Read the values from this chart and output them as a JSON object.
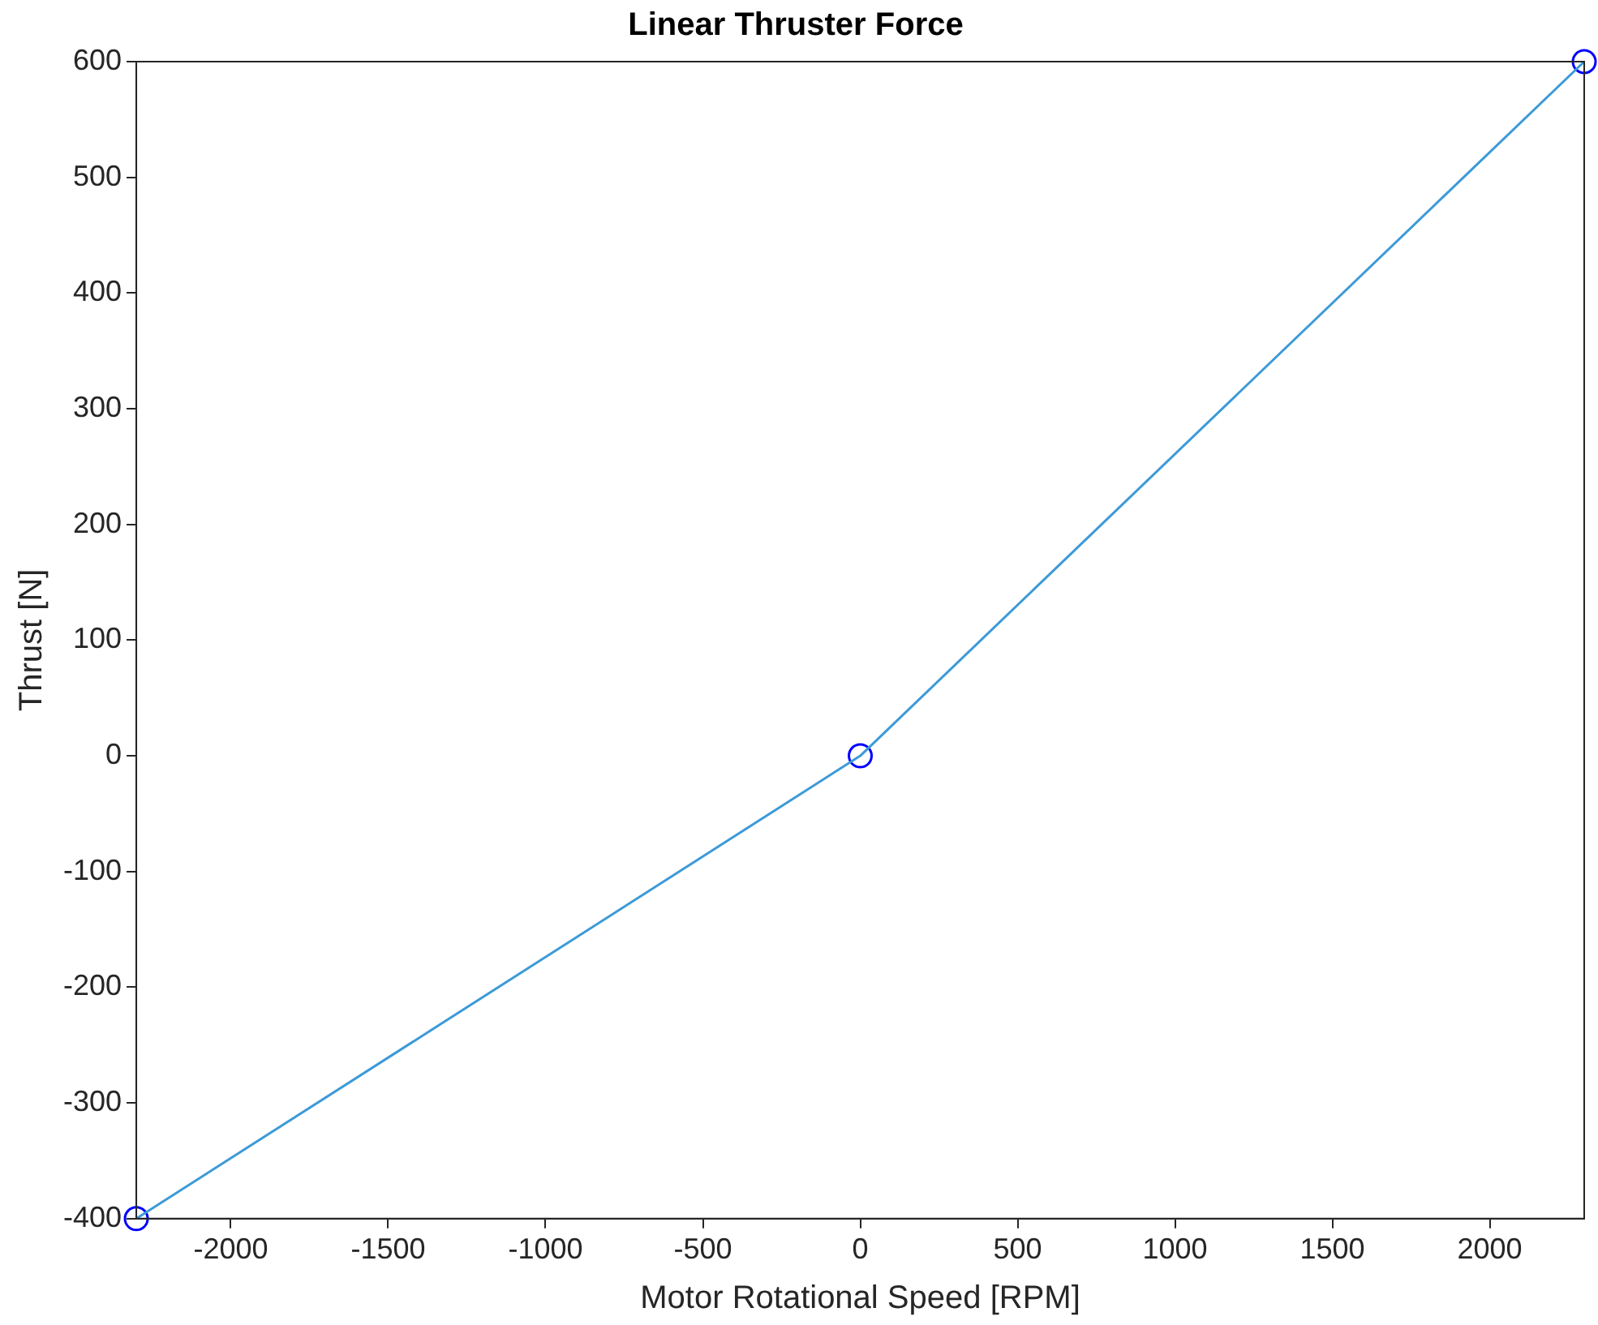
{
  "chart_data": {
    "type": "line",
    "title": "Linear Thruster Force",
    "xlabel": "Motor Rotational Speed [RPM]",
    "ylabel": "Thrust [N]",
    "x": [
      -2300,
      0,
      2300
    ],
    "series": [
      {
        "color": "#3c9ad8",
        "values": [
          -400,
          0,
          600
        ],
        "marker": "none"
      },
      {
        "type": "scatter",
        "color": "#0000ff",
        "values": [
          -400,
          0,
          600
        ],
        "marker": "circle"
      }
    ],
    "xlim": [
      -2300,
      2300
    ],
    "xticks": [
      -2000,
      -1500,
      -1000,
      -500,
      0,
      500,
      1000,
      1500,
      2000
    ],
    "ylim": [
      -400,
      600
    ],
    "yticks": [
      -400,
      -300,
      -200,
      -100,
      0,
      100,
      200,
      300,
      400,
      500,
      600
    ],
    "grid": false,
    "legend": false
  }
}
